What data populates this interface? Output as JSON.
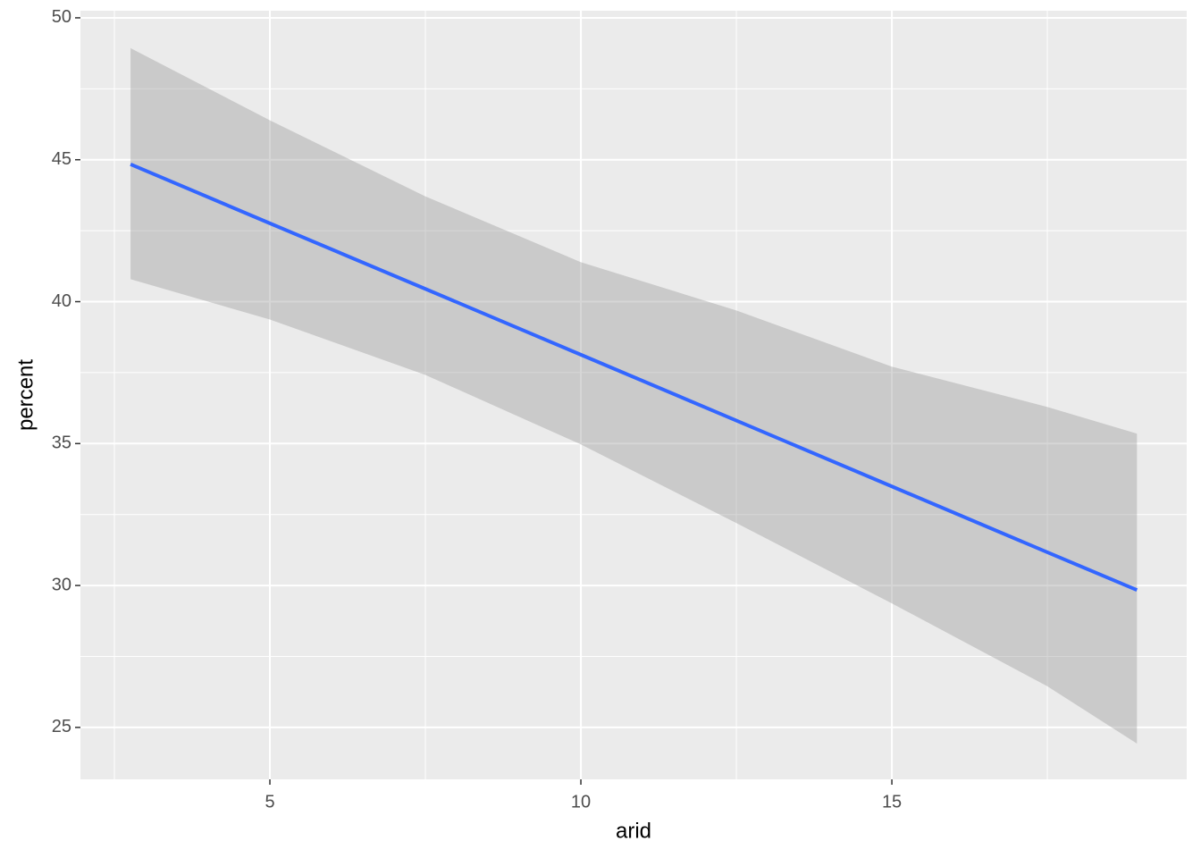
{
  "chart_data": {
    "type": "line",
    "x_label": "arid",
    "y_label": "percent",
    "x": [
      2.76,
      5,
      7.5,
      10,
      12.5,
      15,
      17.5,
      18.94
    ],
    "line": {
      "color": "#3366ff",
      "values": [
        44.84,
        42.76,
        40.45,
        38.13,
        35.81,
        33.49,
        31.17,
        29.84
      ]
    },
    "band": {
      "color": "#999999",
      "upper": [
        48.93,
        46.39,
        43.71,
        41.39,
        39.69,
        37.71,
        36.29,
        35.35
      ],
      "lower": [
        40.79,
        39.37,
        37.42,
        34.97,
        32.2,
        29.37,
        26.45,
        24.43
      ]
    },
    "xlim": [
      1.954,
      19.74
    ],
    "xticks": [
      5,
      10,
      15
    ],
    "xminor": [
      2.5,
      7.5,
      12.5,
      17.5
    ],
    "ylim": [
      23.17,
      50.25
    ],
    "yticks": [
      25,
      30,
      35,
      40,
      45,
      50
    ],
    "yminor": [
      27.5,
      32.5,
      37.5,
      42.5,
      47.5
    ],
    "grid": true
  }
}
